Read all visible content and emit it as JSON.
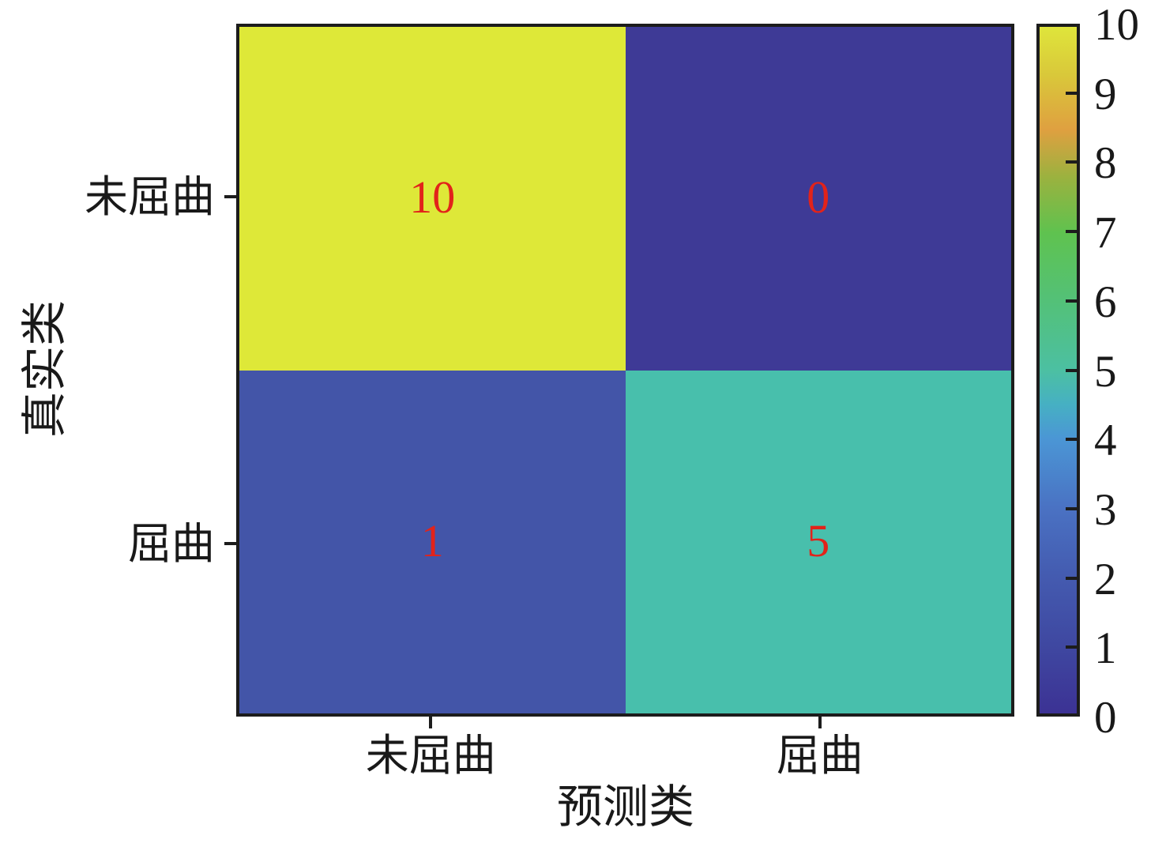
{
  "chart_data": {
    "type": "heatmap",
    "subtype": "confusion-matrix",
    "title": "",
    "xlabel": "预测类",
    "ylabel": "真实类",
    "x_categories": [
      "未屈曲",
      "屈曲"
    ],
    "y_categories": [
      "未屈曲",
      "屈曲"
    ],
    "values": [
      [
        10,
        0
      ],
      [
        1,
        5
      ]
    ],
    "cell_colors": [
      [
        "#dee838",
        "#3e3a96"
      ],
      [
        "#4355a8",
        "#48bfac"
      ]
    ],
    "value_text_color": "#e2231a",
    "axis_color": "#1c1c1c",
    "grid": false,
    "colorbar": {
      "min": 0,
      "max": 10,
      "ticks": [
        0,
        1,
        2,
        3,
        4,
        5,
        6,
        7,
        8,
        9,
        10
      ],
      "position": "right",
      "gradient_stops": [
        [
          0,
          "#3c3294"
        ],
        [
          10,
          "#3f48a1"
        ],
        [
          20,
          "#445bb0"
        ],
        [
          30,
          "#4a72c3"
        ],
        [
          40,
          "#4b96d5"
        ],
        [
          45,
          "#46b0c3"
        ],
        [
          50,
          "#4cc0a2"
        ],
        [
          60,
          "#53c178"
        ],
        [
          70,
          "#5fc24f"
        ],
        [
          78,
          "#9ab23f"
        ],
        [
          85,
          "#dfa040"
        ],
        [
          93,
          "#d9c83a"
        ],
        [
          100,
          "#dfe53b"
        ]
      ]
    }
  }
}
